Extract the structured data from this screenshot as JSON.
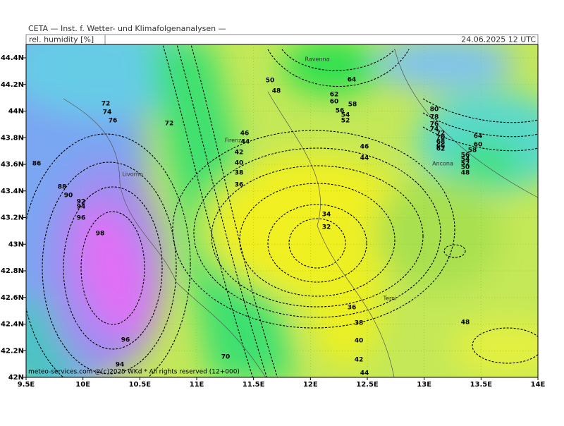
{
  "header": {
    "source": "CETA — Inst. f. Wetter- und Klimafolgenanalysen —",
    "variable": "rel. humidity [%]",
    "datetime": "24.06.2025 12 UTC"
  },
  "axes": {
    "x_ticks": [
      "9.5E",
      "10E",
      "10.5E",
      "11E",
      "11.5E",
      "12E",
      "12.5E",
      "13E",
      "13.5E",
      "14E"
    ],
    "y_ticks": [
      "42N",
      "42.2N",
      "42.4N",
      "42.6N",
      "42.8N",
      "43N",
      "43.2N",
      "43.4N",
      "43.6N",
      "43.8N",
      "44N",
      "44.2N",
      "44.4N"
    ]
  },
  "cities": [
    "Ravenna",
    "Firenze",
    "Livorno",
    "Ancona",
    "Terni"
  ],
  "contour_labels": [
    72,
    74,
    76,
    72,
    86,
    88,
    90,
    92,
    94,
    96,
    98,
    96,
    94,
    70,
    50,
    48,
    46,
    44,
    42,
    40,
    38,
    36,
    34,
    32,
    64,
    62,
    60,
    58,
    56,
    54,
    52,
    46,
    44,
    36,
    38,
    40,
    42,
    44,
    80,
    78,
    76,
    74,
    72,
    70,
    68,
    66,
    62,
    64,
    60,
    58,
    56,
    54,
    52,
    50,
    48,
    48
  ],
  "copyright": "meteo-services.com @(c)2025 WKd * All rights reserved (12+000)"
}
